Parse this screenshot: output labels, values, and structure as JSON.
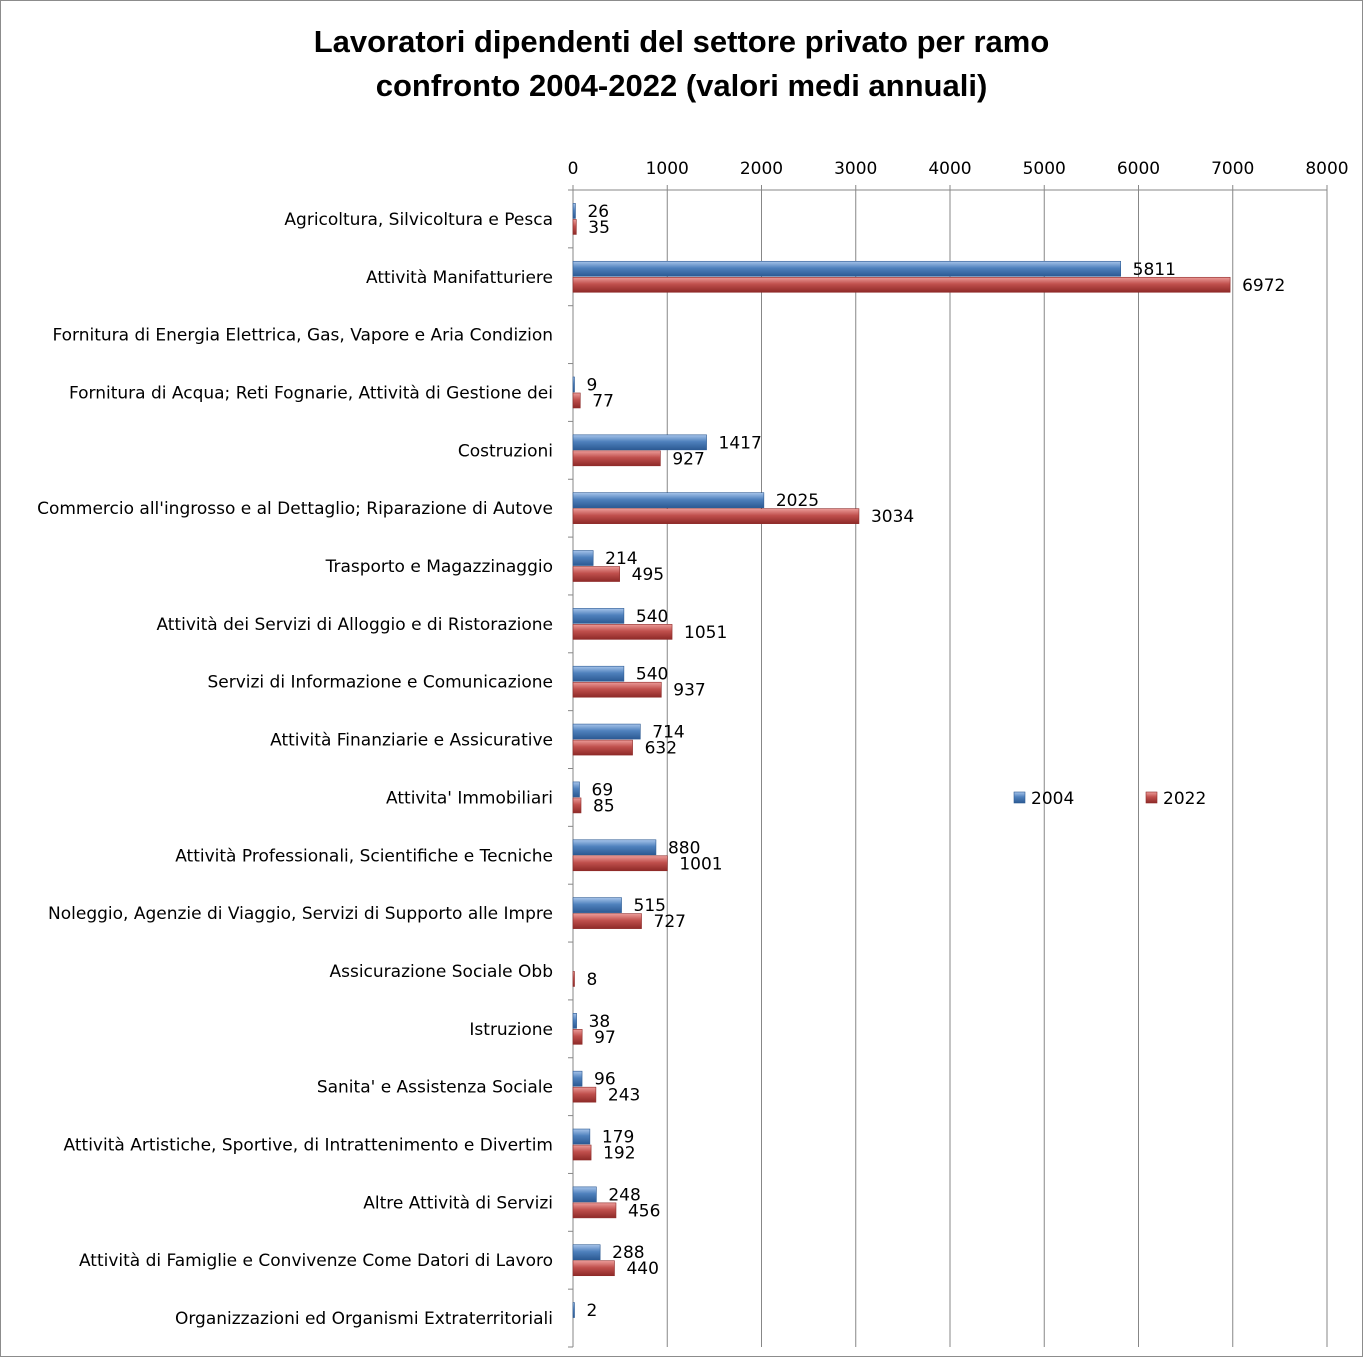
{
  "chart_data": {
    "type": "bar",
    "orientation": "horizontal",
    "title_lines": [
      "Lavoratori dipendenti del settore privato per ramo",
      "confronto  2004-2022 (valori medi annuali)"
    ],
    "xlim": [
      0,
      8000
    ],
    "x_ticks": [
      "0",
      "1000",
      "2000",
      "3000",
      "4000",
      "5000",
      "6000",
      "7000",
      "8000"
    ],
    "x_tick_values": [
      0,
      1000,
      2000,
      3000,
      4000,
      5000,
      6000,
      7000,
      8000
    ],
    "grid": true,
    "legend_position": "right-middle",
    "categories": [
      "Agricoltura, Silvicoltura e Pesca",
      "Attività Manifatturiere",
      "Fornitura di Energia Elettrica, Gas, Vapore e Aria Condizion",
      "Fornitura di Acqua; Reti Fognarie, Attività di Gestione dei",
      "Costruzioni",
      "Commercio all'ingrosso e al Dettaglio; Riparazione di Autove",
      "Trasporto e Magazzinaggio",
      "Attività dei Servizi di Alloggio e di Ristorazione",
      "Servizi di Informazione e Comunicazione",
      "Attività Finanziarie e Assicurative",
      "Attivita' Immobiliari",
      "Attività Professionali, Scientifiche e Tecniche",
      "Noleggio, Agenzie di Viaggio, Servizi di Supporto alle Impre",
      "Assicurazione Sociale Obb",
      "Istruzione",
      "Sanita' e Assistenza Sociale",
      "Attività Artistiche, Sportive, di Intrattenimento e Divertim",
      "Altre Attività di Servizi",
      "Attività di Famiglie e Convivenze Come Datori di Lavoro",
      "Organizzazioni ed Organismi Extraterritoriali"
    ],
    "series": [
      {
        "name": "2004",
        "color": "#4f81bd",
        "color_light": "#a7c4ea",
        "color_dark": "#2c5a93",
        "values": [
          26,
          5811,
          null,
          9,
          1417,
          2025,
          214,
          540,
          540,
          714,
          69,
          880,
          515,
          null,
          38,
          96,
          179,
          248,
          288,
          2
        ]
      },
      {
        "name": "2022",
        "color": "#c0504d",
        "color_light": "#ec9c99",
        "color_dark": "#8e2a28",
        "values": [
          35,
          6972,
          null,
          77,
          927,
          3034,
          495,
          1051,
          937,
          632,
          85,
          1001,
          727,
          8,
          97,
          243,
          192,
          456,
          440,
          null
        ]
      }
    ]
  }
}
